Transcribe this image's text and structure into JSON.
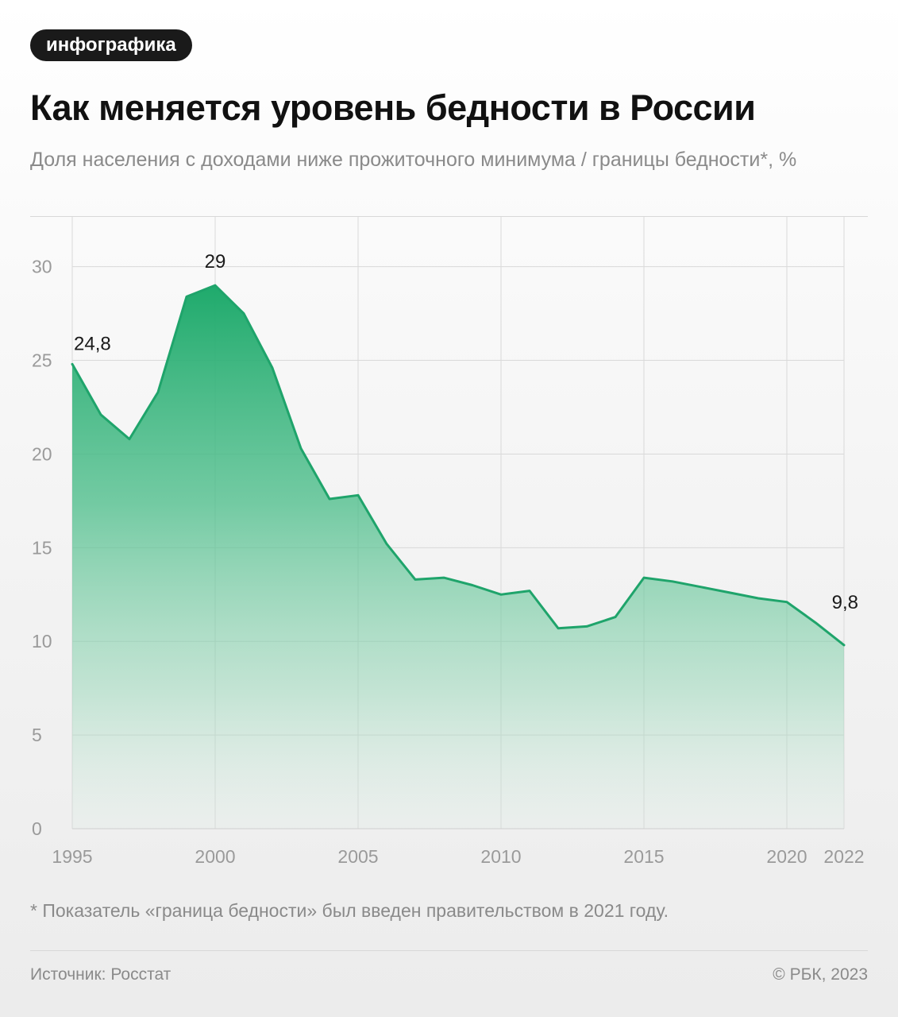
{
  "badge": "инфографика",
  "title": "Как меняется уровень бедности в России",
  "subtitle": "Доля населения с доходами ниже прожиточного минимума / границы бедности*, %",
  "footnote": "* Показатель «граница бедности» был введен правительством в 2021 году.",
  "source": "Источник: Росстат",
  "copyright": "© РБК, 2023",
  "chart_data": {
    "type": "area",
    "title": "Как меняется уровень бедности в России",
    "ylabel": "Доля населения с доходами ниже прожиточного минимума / границы бедности*, %",
    "xlabel": "",
    "x": [
      1995,
      1996,
      1997,
      1998,
      1999,
      2000,
      2001,
      2002,
      2003,
      2004,
      2005,
      2006,
      2007,
      2008,
      2009,
      2010,
      2011,
      2012,
      2013,
      2014,
      2015,
      2016,
      2017,
      2018,
      2019,
      2020,
      2021,
      2022
    ],
    "series": [
      {
        "values": [
          24.8,
          22.1,
          20.8,
          23.3,
          28.4,
          29.0,
          27.5,
          24.6,
          20.3,
          17.6,
          17.8,
          15.2,
          13.3,
          13.4,
          13.0,
          12.5,
          12.7,
          10.7,
          10.8,
          11.3,
          13.4,
          13.2,
          12.9,
          12.6,
          12.3,
          12.1,
          11.0,
          9.8
        ],
        "color": "#1fa46b"
      }
    ],
    "xticks": [
      "1995",
      "2000",
      "2005",
      "2010",
      "2015",
      "2020",
      "2022"
    ],
    "xtick_values": [
      1995,
      2000,
      2005,
      2010,
      2015,
      2020,
      2022
    ],
    "yticks": [
      "0",
      "5",
      "10",
      "15",
      "20",
      "25",
      "30"
    ],
    "ytick_values": [
      0,
      5,
      10,
      15,
      20,
      25,
      30
    ],
    "ylim": [
      0,
      32.7
    ],
    "xlim": [
      1995,
      2022
    ],
    "grid": true,
    "annotations": [
      {
        "x": 1995,
        "text": "24,8"
      },
      {
        "x": 2000,
        "text": "29"
      },
      {
        "x": 2022,
        "text": "9,8"
      }
    ]
  }
}
